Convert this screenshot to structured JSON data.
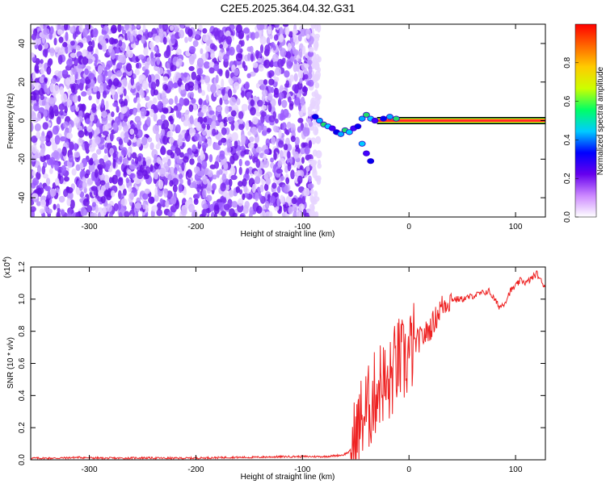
{
  "title": "C2E5.2025.364.04.32.G31",
  "chart_data": [
    {
      "type": "heatmap",
      "xlabel": "Height of straight line (km)",
      "ylabel": "Frequency (Hz)",
      "xlim": [
        -355,
        128
      ],
      "ylim": [
        -50,
        50
      ],
      "xticks": [
        -300,
        -200,
        -100,
        0,
        100
      ],
      "yticks": [
        -40,
        -20,
        0,
        20,
        40
      ],
      "colorbar": {
        "label": "Normalized spectral amplitude",
        "range": [
          0,
          1
        ],
        "ticks": [
          "0.0",
          "0.2",
          "0.4",
          "0.6",
          "0.8"
        ],
        "tick_values": [
          0,
          0.2,
          0.4,
          0.6,
          0.8
        ],
        "colors": [
          "#ffffff",
          "#cc88ff",
          "#6600ee",
          "#0000ff",
          "#00ccff",
          "#00ff66",
          "#ccff00",
          "#ffcc00",
          "#ff6600",
          "#ff0000"
        ]
      },
      "noise_region_x": [
        -355,
        -92
      ],
      "signal_band": {
        "x": [
          -30,
          128
        ],
        "y": 0
      },
      "scatter_trail": [
        {
          "x": -88,
          "y": 2
        },
        {
          "x": -84,
          "y": 0
        },
        {
          "x": -80,
          "y": -2
        },
        {
          "x": -76,
          "y": -3
        },
        {
          "x": -72,
          "y": -4
        },
        {
          "x": -68,
          "y": -6
        },
        {
          "x": -64,
          "y": -7
        },
        {
          "x": -60,
          "y": -5
        },
        {
          "x": -56,
          "y": -6
        },
        {
          "x": -52,
          "y": -4
        },
        {
          "x": -48,
          "y": -3
        },
        {
          "x": -44,
          "y": 1
        },
        {
          "x": -40,
          "y": 3
        },
        {
          "x": -36,
          "y": 1
        },
        {
          "x": -32,
          "y": 0
        },
        {
          "x": -24,
          "y": 1
        },
        {
          "x": -18,
          "y": 2
        },
        {
          "x": -12,
          "y": 1
        },
        {
          "x": -44,
          "y": -12
        },
        {
          "x": -40,
          "y": -17
        },
        {
          "x": -36,
          "y": -21
        }
      ]
    },
    {
      "type": "line",
      "xlabel": "Height of straight line (km)",
      "ylabel": "SNR (10 * v/v)",
      "y_multiplier": "(x10",
      "y_multiplier_exp": "4",
      "y_multiplier_close": ")",
      "xlim": [
        -355,
        128
      ],
      "ylim": [
        0,
        1.2
      ],
      "xticks": [
        -300,
        -200,
        -100,
        0,
        100
      ],
      "yticks": [
        0.0,
        0.2,
        0.4,
        0.6,
        0.8,
        1.0,
        1.2
      ],
      "ytick_labels": [
        "0.0",
        "0.2",
        "0.4",
        "0.6",
        "0.8",
        "1.0",
        "1.2"
      ],
      "series": [
        {
          "color": "#ee2222",
          "x": [
            -355,
            -330,
            -310,
            -290,
            -270,
            -250,
            -230,
            -210,
            -190,
            -170,
            -150,
            -130,
            -110,
            -90,
            -80,
            -70,
            -62,
            -56,
            -50,
            -45,
            -40,
            -35,
            -30,
            -25,
            -20,
            -15,
            -10,
            -5,
            0,
            5,
            10,
            15,
            20,
            25,
            30,
            35,
            40,
            50,
            60,
            70,
            75,
            80,
            85,
            90,
            95,
            100,
            105,
            110,
            115,
            120,
            125,
            128
          ],
          "y": [
            0.01,
            0.01,
            0.015,
            0.01,
            0.01,
            0.012,
            0.01,
            0.01,
            0.012,
            0.015,
            0.015,
            0.018,
            0.02,
            0.02,
            0.02,
            0.025,
            0.03,
            0.05,
            0.12,
            0.25,
            0.3,
            0.35,
            0.45,
            0.5,
            0.42,
            0.55,
            0.62,
            0.6,
            0.65,
            0.72,
            0.75,
            0.78,
            0.82,
            0.88,
            0.95,
            0.98,
            1.0,
            1.0,
            1.02,
            1.04,
            1.05,
            1.0,
            0.95,
            0.98,
            1.05,
            1.08,
            1.12,
            1.1,
            1.13,
            1.16,
            1.1,
            1.08
          ]
        }
      ]
    }
  ]
}
